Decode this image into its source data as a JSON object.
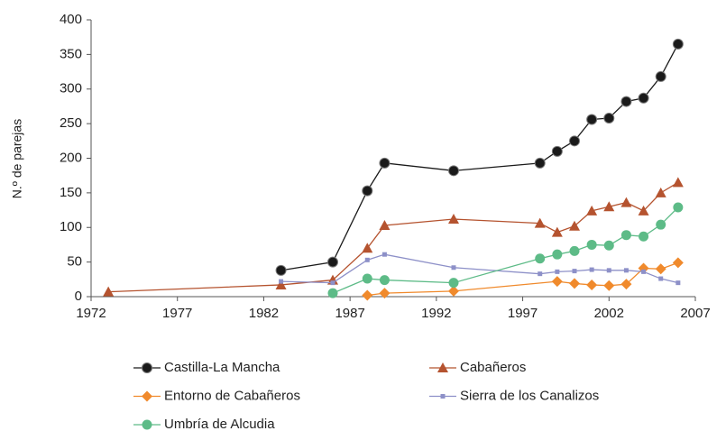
{
  "chart_data": {
    "type": "line",
    "ylabel": "N.º de parejas",
    "xlim": [
      1972,
      2007
    ],
    "xticks": [
      1972,
      1977,
      1982,
      1987,
      1992,
      1997,
      2002,
      2007
    ],
    "ylim": [
      0,
      400
    ],
    "yticks": [
      0,
      50,
      100,
      150,
      200,
      250,
      300,
      350,
      400
    ],
    "series": [
      {
        "name": "Castilla-La Mancha",
        "color": "#1a1a1a",
        "marker": "circle",
        "x": [
          1983,
          1986,
          1988,
          1989,
          1993,
          1998,
          1999,
          2000,
          2001,
          2002,
          2003,
          2004,
          2005,
          2006
        ],
        "values": [
          38,
          50,
          153,
          193,
          182,
          193,
          210,
          225,
          256,
          258,
          282,
          287,
          318,
          365
        ]
      },
      {
        "name": "Cabañeros",
        "color": "#b5532f",
        "marker": "triangle",
        "x": [
          1973,
          1983,
          1986,
          1988,
          1989,
          1993,
          1998,
          1999,
          2000,
          2001,
          2002,
          2003,
          2004,
          2005,
          2006
        ],
        "values": [
          7,
          17,
          24,
          70,
          103,
          112,
          106,
          93,
          102,
          124,
          130,
          136,
          124,
          150,
          165
        ]
      },
      {
        "name": "Entorno de Cabañeros",
        "color": "#f08a2c",
        "marker": "diamond",
        "x": [
          1988,
          1989,
          1993,
          1999,
          2000,
          2001,
          2002,
          2003,
          2004,
          2005,
          2006
        ],
        "values": [
          2,
          5,
          8,
          22,
          19,
          17,
          16,
          18,
          41,
          40,
          49
        ]
      },
      {
        "name": "Sierra de los Canalizos",
        "color": "#8d90c8",
        "marker": "square",
        "x": [
          1983,
          1986,
          1988,
          1989,
          1993,
          1998,
          1999,
          2000,
          2001,
          2002,
          2003,
          2004,
          2005,
          2006
        ],
        "values": [
          22,
          20,
          53,
          61,
          42,
          33,
          36,
          37,
          39,
          38,
          38,
          36,
          26,
          20
        ]
      },
      {
        "name": "Umbría de Alcudia",
        "color": "#5dbb87",
        "marker": "circle",
        "x": [
          1986,
          1988,
          1989,
          1993,
          1998,
          1999,
          2000,
          2001,
          2002,
          2003,
          2004,
          2005,
          2006
        ],
        "values": [
          5,
          26,
          24,
          20,
          55,
          61,
          66,
          75,
          74,
          89,
          87,
          104,
          129
        ]
      }
    ]
  }
}
